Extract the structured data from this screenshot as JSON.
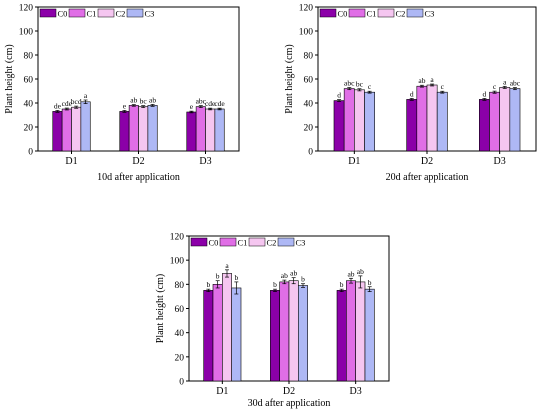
{
  "chart_data": [
    {
      "type": "bar",
      "title": "10d after application",
      "xlabel": "",
      "ylabel": "Plant height (cm)",
      "ylim": [
        0,
        120
      ],
      "yticks": [
        0,
        20,
        40,
        60,
        80,
        100,
        120
      ],
      "categories": [
        "D1",
        "D2",
        "D3"
      ],
      "legend": "top-left",
      "series": [
        {
          "name": "C0",
          "color": "#8b00a8",
          "values": [
            33,
            33,
            32.5
          ],
          "errors": [
            0.8,
            0.8,
            0.7
          ],
          "letters": [
            "de",
            "e",
            "e"
          ]
        },
        {
          "name": "C1",
          "color": "#e06ee6",
          "values": [
            35,
            38,
            37
          ],
          "errors": [
            0.8,
            0.7,
            0.8
          ],
          "letters": [
            "cde",
            "ab",
            "abc"
          ]
        },
        {
          "name": "C2",
          "color": "#f5c6f0",
          "values": [
            36.5,
            37,
            35
          ],
          "errors": [
            0.9,
            0.8,
            0.7
          ],
          "letters": [
            "bcd",
            "bc",
            "cde"
          ]
        },
        {
          "name": "C3",
          "color": "#aeb8f5",
          "values": [
            41,
            38,
            35
          ],
          "errors": [
            1.5,
            0.8,
            0.7
          ],
          "letters": [
            "a",
            "ab",
            "cde"
          ]
        }
      ]
    },
    {
      "type": "bar",
      "title": "20d after application",
      "xlabel": "",
      "ylabel": "Plant height (cm)",
      "ylim": [
        0,
        120
      ],
      "yticks": [
        0,
        20,
        40,
        60,
        80,
        100,
        120
      ],
      "categories": [
        "D1",
        "D2",
        "D3"
      ],
      "legend": "top-left",
      "series": [
        {
          "name": "C0",
          "color": "#8b00a8",
          "values": [
            42,
            43,
            43
          ],
          "errors": [
            0.8,
            0.8,
            0.8
          ],
          "letters": [
            "d",
            "d",
            "d"
          ]
        },
        {
          "name": "C1",
          "color": "#e06ee6",
          "values": [
            52,
            54,
            49
          ],
          "errors": [
            0.9,
            0.8,
            0.9
          ],
          "letters": [
            "abc",
            "ab",
            "c"
          ]
        },
        {
          "name": "C2",
          "color": "#f5c6f0",
          "values": [
            51,
            55,
            53
          ],
          "errors": [
            0.9,
            0.8,
            0.9
          ],
          "letters": [
            "bc",
            "a",
            "a"
          ]
        },
        {
          "name": "C3",
          "color": "#aeb8f5",
          "values": [
            49,
            49,
            52
          ],
          "errors": [
            0.8,
            0.8,
            0.9
          ],
          "letters": [
            "c",
            "c",
            "abc"
          ]
        }
      ]
    },
    {
      "type": "bar",
      "title": "30d after application",
      "xlabel": "",
      "ylabel": "Plant height (cm)",
      "ylim": [
        0,
        120
      ],
      "yticks": [
        0,
        20,
        40,
        60,
        80,
        100,
        120
      ],
      "categories": [
        "D1",
        "D2",
        "D3"
      ],
      "legend": "top-left",
      "series": [
        {
          "name": "C0",
          "color": "#8b00a8",
          "values": [
            75,
            75,
            75
          ],
          "errors": [
            1,
            1,
            1
          ],
          "letters": [
            "b",
            "b",
            "b"
          ]
        },
        {
          "name": "C1",
          "color": "#e06ee6",
          "values": [
            80,
            82,
            83
          ],
          "errors": [
            3,
            1.5,
            2
          ],
          "letters": [
            "b",
            "ab",
            "ab"
          ]
        },
        {
          "name": "C2",
          "color": "#f5c6f0",
          "values": [
            89,
            83,
            82
          ],
          "errors": [
            3,
            2.5,
            5
          ],
          "letters": [
            "a",
            "ab",
            "ab"
          ]
        },
        {
          "name": "C3",
          "color": "#aeb8f5",
          "values": [
            77,
            79,
            76
          ],
          "errors": [
            5,
            1.5,
            2
          ],
          "letters": [
            "b",
            "b",
            "b"
          ]
        }
      ]
    }
  ]
}
